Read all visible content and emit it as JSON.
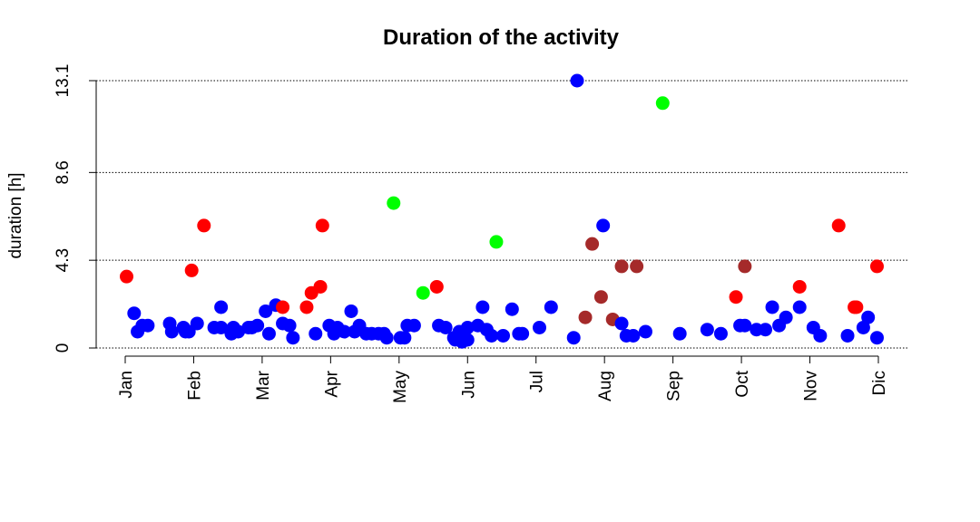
{
  "chart_data": {
    "type": "scatter",
    "title": "Duration of the activity",
    "xlabel": "",
    "ylabel": "duration [h]",
    "ylim": [
      0,
      13.1
    ],
    "xlim": [
      0,
      11
    ],
    "y_ticks": [
      0,
      4.3,
      8.6,
      13.1
    ],
    "y_tick_labels": [
      "0",
      "4.3",
      "8.6",
      "13.1"
    ],
    "x_ticks": [
      0,
      1,
      2,
      3,
      4,
      5,
      6,
      7,
      8,
      9,
      10,
      11
    ],
    "x_tick_labels": [
      "Jan",
      "Feb",
      "Mar",
      "Apr",
      "May",
      "Jun",
      "Jul",
      "Aug",
      "Sep",
      "Oct",
      "Nov",
      "Dic"
    ],
    "grid": "horizontal dotted at y ticks",
    "legend": "none",
    "colors": {
      "blue": "#0000ff",
      "red": "#ff0000",
      "green": "#00ff00",
      "brown": "#a52a2a"
    },
    "points": [
      {
        "x": 0.02,
        "y": 3.5,
        "color": "red"
      },
      {
        "x": 0.13,
        "y": 1.7,
        "color": "blue"
      },
      {
        "x": 0.18,
        "y": 0.8,
        "color": "blue"
      },
      {
        "x": 0.25,
        "y": 1.1,
        "color": "blue"
      },
      {
        "x": 0.33,
        "y": 1.1,
        "color": "blue"
      },
      {
        "x": 0.65,
        "y": 1.2,
        "color": "blue"
      },
      {
        "x": 0.68,
        "y": 0.8,
        "color": "blue"
      },
      {
        "x": 0.85,
        "y": 1.0,
        "color": "blue"
      },
      {
        "x": 0.88,
        "y": 0.8,
        "color": "blue"
      },
      {
        "x": 0.93,
        "y": 0.8,
        "color": "blue"
      },
      {
        "x": 0.97,
        "y": 3.8,
        "color": "red"
      },
      {
        "x": 1.05,
        "y": 1.2,
        "color": "blue"
      },
      {
        "x": 1.15,
        "y": 6.0,
        "color": "red"
      },
      {
        "x": 1.3,
        "y": 1.0,
        "color": "blue"
      },
      {
        "x": 1.4,
        "y": 2.0,
        "color": "blue"
      },
      {
        "x": 1.4,
        "y": 1.0,
        "color": "blue"
      },
      {
        "x": 1.55,
        "y": 0.7,
        "color": "blue"
      },
      {
        "x": 1.58,
        "y": 1.0,
        "color": "blue"
      },
      {
        "x": 1.65,
        "y": 0.8,
        "color": "blue"
      },
      {
        "x": 1.8,
        "y": 1.0,
        "color": "blue"
      },
      {
        "x": 1.85,
        "y": 1.0,
        "color": "blue"
      },
      {
        "x": 1.93,
        "y": 1.1,
        "color": "blue"
      },
      {
        "x": 2.05,
        "y": 1.8,
        "color": "blue"
      },
      {
        "x": 2.1,
        "y": 0.7,
        "color": "blue"
      },
      {
        "x": 2.2,
        "y": 2.1,
        "color": "blue"
      },
      {
        "x": 2.3,
        "y": 2.0,
        "color": "red"
      },
      {
        "x": 2.3,
        "y": 1.2,
        "color": "blue"
      },
      {
        "x": 2.4,
        "y": 1.1,
        "color": "blue"
      },
      {
        "x": 2.45,
        "y": 0.5,
        "color": "blue"
      },
      {
        "x": 2.65,
        "y": 2.0,
        "color": "red"
      },
      {
        "x": 2.72,
        "y": 2.7,
        "color": "red"
      },
      {
        "x": 2.78,
        "y": 0.7,
        "color": "blue"
      },
      {
        "x": 2.85,
        "y": 3.0,
        "color": "red"
      },
      {
        "x": 2.88,
        "y": 6.0,
        "color": "red"
      },
      {
        "x": 2.98,
        "y": 1.1,
        "color": "blue"
      },
      {
        "x": 3.05,
        "y": 0.7,
        "color": "blue"
      },
      {
        "x": 3.1,
        "y": 1.0,
        "color": "blue"
      },
      {
        "x": 3.2,
        "y": 0.8,
        "color": "blue"
      },
      {
        "x": 3.3,
        "y": 1.8,
        "color": "blue"
      },
      {
        "x": 3.35,
        "y": 0.8,
        "color": "blue"
      },
      {
        "x": 3.42,
        "y": 1.1,
        "color": "blue"
      },
      {
        "x": 3.52,
        "y": 0.7,
        "color": "blue"
      },
      {
        "x": 3.6,
        "y": 0.7,
        "color": "blue"
      },
      {
        "x": 3.7,
        "y": 0.7,
        "color": "blue"
      },
      {
        "x": 3.78,
        "y": 0.7,
        "color": "blue"
      },
      {
        "x": 3.82,
        "y": 0.5,
        "color": "blue"
      },
      {
        "x": 3.92,
        "y": 7.1,
        "color": "green"
      },
      {
        "x": 4.02,
        "y": 0.5,
        "color": "blue"
      },
      {
        "x": 4.08,
        "y": 0.5,
        "color": "blue"
      },
      {
        "x": 4.12,
        "y": 1.1,
        "color": "blue"
      },
      {
        "x": 4.22,
        "y": 1.1,
        "color": "blue"
      },
      {
        "x": 4.35,
        "y": 2.7,
        "color": "green"
      },
      {
        "x": 4.55,
        "y": 3.0,
        "color": "red"
      },
      {
        "x": 4.58,
        "y": 1.1,
        "color": "blue"
      },
      {
        "x": 4.68,
        "y": 1.0,
        "color": "blue"
      },
      {
        "x": 4.8,
        "y": 0.5,
        "color": "blue"
      },
      {
        "x": 4.82,
        "y": 0.4,
        "color": "blue"
      },
      {
        "x": 4.88,
        "y": 0.8,
        "color": "blue"
      },
      {
        "x": 4.92,
        "y": 0.3,
        "color": "blue"
      },
      {
        "x": 4.95,
        "y": 0.6,
        "color": "blue"
      },
      {
        "x": 5.0,
        "y": 1.0,
        "color": "blue"
      },
      {
        "x": 5.0,
        "y": 0.4,
        "color": "blue"
      },
      {
        "x": 5.15,
        "y": 1.1,
        "color": "blue"
      },
      {
        "x": 5.22,
        "y": 2.0,
        "color": "blue"
      },
      {
        "x": 5.28,
        "y": 0.9,
        "color": "blue"
      },
      {
        "x": 5.35,
        "y": 0.6,
        "color": "blue"
      },
      {
        "x": 5.42,
        "y": 5.2,
        "color": "green"
      },
      {
        "x": 5.52,
        "y": 0.6,
        "color": "blue"
      },
      {
        "x": 5.65,
        "y": 1.9,
        "color": "blue"
      },
      {
        "x": 5.75,
        "y": 0.7,
        "color": "blue"
      },
      {
        "x": 5.8,
        "y": 0.7,
        "color": "blue"
      },
      {
        "x": 6.05,
        "y": 1.0,
        "color": "blue"
      },
      {
        "x": 6.22,
        "y": 2.0,
        "color": "blue"
      },
      {
        "x": 6.55,
        "y": 0.5,
        "color": "blue"
      },
      {
        "x": 6.6,
        "y": 13.1,
        "color": "blue"
      },
      {
        "x": 6.72,
        "y": 1.5,
        "color": "brown"
      },
      {
        "x": 6.82,
        "y": 5.1,
        "color": "brown"
      },
      {
        "x": 6.95,
        "y": 2.5,
        "color": "brown"
      },
      {
        "x": 6.98,
        "y": 6.0,
        "color": "blue"
      },
      {
        "x": 7.12,
        "y": 1.4,
        "color": "brown"
      },
      {
        "x": 7.25,
        "y": 4.0,
        "color": "brown"
      },
      {
        "x": 7.25,
        "y": 1.2,
        "color": "blue"
      },
      {
        "x": 7.32,
        "y": 0.6,
        "color": "blue"
      },
      {
        "x": 7.42,
        "y": 0.6,
        "color": "blue"
      },
      {
        "x": 7.47,
        "y": 4.0,
        "color": "brown"
      },
      {
        "x": 7.6,
        "y": 0.8,
        "color": "blue"
      },
      {
        "x": 7.85,
        "y": 12.0,
        "color": "green"
      },
      {
        "x": 8.1,
        "y": 0.7,
        "color": "blue"
      },
      {
        "x": 8.5,
        "y": 0.9,
        "color": "blue"
      },
      {
        "x": 8.7,
        "y": 0.7,
        "color": "blue"
      },
      {
        "x": 8.92,
        "y": 2.5,
        "color": "red"
      },
      {
        "x": 8.98,
        "y": 1.1,
        "color": "blue"
      },
      {
        "x": 9.05,
        "y": 1.1,
        "color": "blue"
      },
      {
        "x": 9.05,
        "y": 4.0,
        "color": "brown"
      },
      {
        "x": 9.22,
        "y": 0.9,
        "color": "blue"
      },
      {
        "x": 9.35,
        "y": 0.9,
        "color": "blue"
      },
      {
        "x": 9.45,
        "y": 2.0,
        "color": "blue"
      },
      {
        "x": 9.55,
        "y": 1.1,
        "color": "blue"
      },
      {
        "x": 9.65,
        "y": 1.5,
        "color": "blue"
      },
      {
        "x": 9.85,
        "y": 2.0,
        "color": "blue"
      },
      {
        "x": 9.85,
        "y": 3.0,
        "color": "red"
      },
      {
        "x": 10.05,
        "y": 1.0,
        "color": "blue"
      },
      {
        "x": 10.15,
        "y": 0.6,
        "color": "blue"
      },
      {
        "x": 10.42,
        "y": 6.0,
        "color": "red"
      },
      {
        "x": 10.55,
        "y": 0.6,
        "color": "blue"
      },
      {
        "x": 10.65,
        "y": 2.0,
        "color": "red"
      },
      {
        "x": 10.68,
        "y": 2.0,
        "color": "red"
      },
      {
        "x": 10.78,
        "y": 1.0,
        "color": "blue"
      },
      {
        "x": 10.85,
        "y": 1.5,
        "color": "blue"
      },
      {
        "x": 10.98,
        "y": 0.5,
        "color": "blue"
      },
      {
        "x": 10.98,
        "y": 4.0,
        "color": "red"
      }
    ]
  }
}
